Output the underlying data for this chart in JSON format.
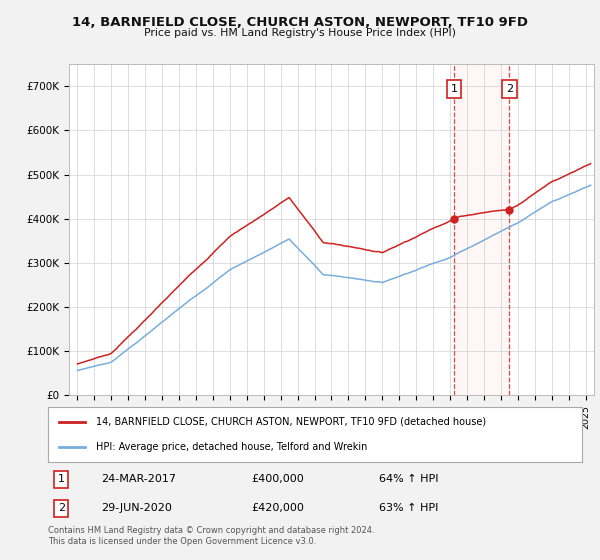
{
  "title": "14, BARNFIELD CLOSE, CHURCH ASTON, NEWPORT, TF10 9FD",
  "subtitle": "Price paid vs. HM Land Registry's House Price Index (HPI)",
  "background_color": "#f2f2f2",
  "plot_bg_color": "#ffffff",
  "red_label": "14, BARNFIELD CLOSE, CHURCH ASTON, NEWPORT, TF10 9FD (detached house)",
  "blue_label": "HPI: Average price, detached house, Telford and Wrekin",
  "annotation1_date": "24-MAR-2017",
  "annotation1_price": "£400,000",
  "annotation1_hpi": "64% ↑ HPI",
  "annotation1_year": 2017.23,
  "annotation1_value": 400000,
  "annotation2_date": "29-JUN-2020",
  "annotation2_price": "£420,000",
  "annotation2_hpi": "63% ↑ HPI",
  "annotation2_year": 2020.5,
  "annotation2_value": 420000,
  "ylim": [
    0,
    750000
  ],
  "yticks": [
    0,
    100000,
    200000,
    300000,
    400000,
    500000,
    600000,
    700000
  ],
  "ytick_labels": [
    "£0",
    "£100K",
    "£200K",
    "£300K",
    "£400K",
    "£500K",
    "£600K",
    "£700K"
  ],
  "xlim_start": 1994.5,
  "xlim_end": 2025.5,
  "footer": "Contains HM Land Registry data © Crown copyright and database right 2024.\nThis data is licensed under the Open Government Licence v3.0."
}
